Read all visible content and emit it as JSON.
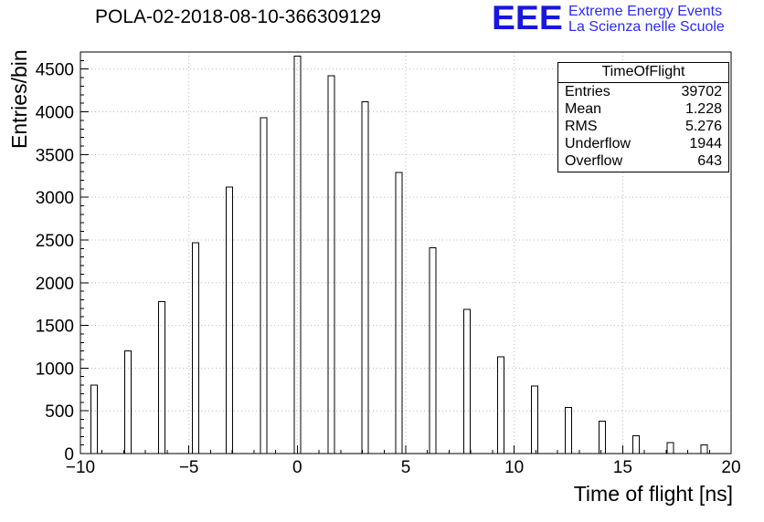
{
  "logo": {
    "acronym": "EEE",
    "line1": "Extreme Energy Events",
    "line2": "La Scienza nelle Scuole",
    "acronym_color": "#1717dd",
    "text_color": "#2b2bf0"
  },
  "stats": {
    "title": "TimeOfFlight",
    "rows": [
      {
        "label": "Entries",
        "value": "39702"
      },
      {
        "label": "Mean",
        "value": "1.228"
      },
      {
        "label": "RMS",
        "value": "5.276"
      },
      {
        "label": "Underflow",
        "value": "1944"
      },
      {
        "label": "Overflow",
        "value": "643"
      }
    ]
  },
  "chart_data": {
    "type": "bar",
    "title": "POLA-02-2018-08-10-366309129",
    "xlabel": "Time of flight [ns]",
    "ylabel": "Entries/bin",
    "xlim": [
      -10,
      20
    ],
    "ylim": [
      0,
      4700
    ],
    "grid": true,
    "bin_spacing_ns": 1.5625,
    "x": [
      -9.375,
      -7.8125,
      -6.25,
      -4.6875,
      -3.125,
      -1.5625,
      0,
      1.5625,
      3.125,
      4.6875,
      6.25,
      7.8125,
      9.375,
      10.9375,
      12.5,
      14.0625,
      15.625,
      17.1875,
      18.75
    ],
    "values": [
      800,
      1200,
      1780,
      2470,
      3120,
      3930,
      4650,
      4420,
      4120,
      3290,
      2410,
      1690,
      1130,
      790,
      540,
      380,
      210,
      130,
      100
    ],
    "x_major_ticks": [
      -10,
      -5,
      0,
      5,
      10,
      15,
      20
    ],
    "x_tick_labels": [
      "−10",
      "−5",
      "0",
      "5",
      "10",
      "15",
      "20"
    ],
    "x_minor_step": 1,
    "y_major_step": 500,
    "y_minor_step": 100,
    "y_tick_labels": [
      "0",
      "500",
      "1000",
      "1500",
      "2000",
      "2500",
      "3000",
      "3500",
      "4000",
      "4500"
    ],
    "colors": {
      "bar_fill": "none",
      "bar_stroke": "#000000",
      "grid": "#b9b9b9",
      "axis": "#000000"
    }
  }
}
